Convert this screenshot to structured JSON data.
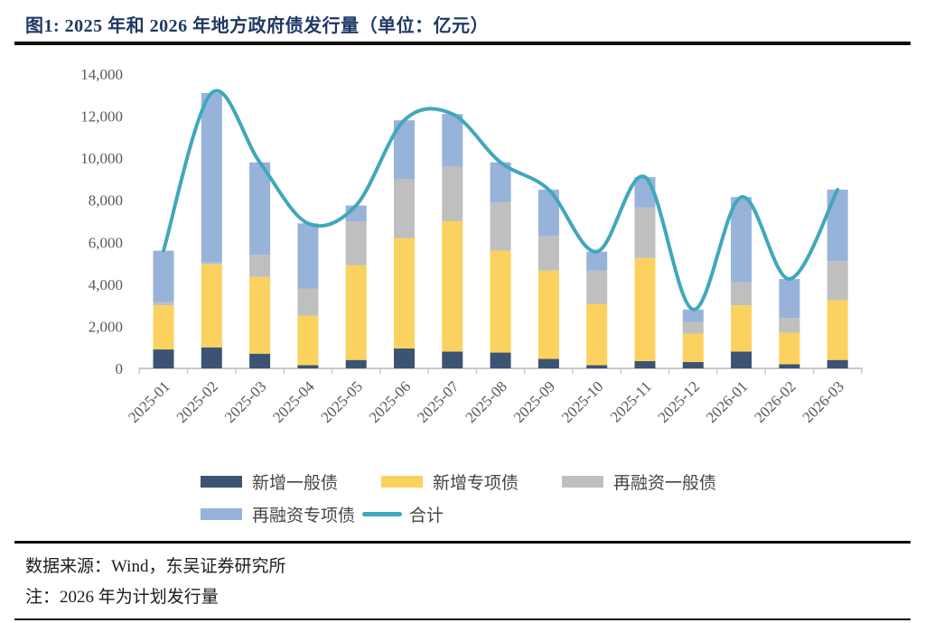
{
  "header": {
    "title": "图1:  2025 年和 2026 年地方政府债发行量（单位：亿元）"
  },
  "chart_data": {
    "type": "bar",
    "subtype": "stacked-bars-with-total-line",
    "title": "2025 年和 2026 年地方政府债发行量",
    "unit": "亿元",
    "xlabel": "",
    "ylabel": "",
    "ylim": [
      0,
      14000
    ],
    "ytick_labels": [
      "0",
      "2,000",
      "4,000",
      "6,000",
      "8,000",
      "10,000",
      "12,000",
      "14,000"
    ],
    "grid": false,
    "legend_position": "bottom",
    "categories": [
      "2025-01",
      "2025-02",
      "2025-03",
      "2025-04",
      "2025-05",
      "2025-06",
      "2025-07",
      "2025-08",
      "2025-09",
      "2025-10",
      "2025-11",
      "2025-12",
      "2026-01",
      "2026-02",
      "2026-03"
    ],
    "series": [
      {
        "name": "新增一般债",
        "color": "#3D5373",
        "values": [
          900,
          1000,
          700,
          150,
          400,
          950,
          800,
          750,
          450,
          150,
          350,
          300,
          800,
          200,
          400
        ]
      },
      {
        "name": "新增专项债",
        "color": "#FBD25F",
        "values": [
          2100,
          3950,
          3650,
          2350,
          4500,
          5250,
          6200,
          4850,
          4200,
          2900,
          4900,
          1350,
          2200,
          1500,
          2850
        ]
      },
      {
        "name": "再融资一般债",
        "color": "#BFBFBF",
        "values": [
          150,
          100,
          1050,
          1300,
          2100,
          2800,
          2600,
          2300,
          1650,
          1600,
          2400,
          550,
          1100,
          700,
          1850
        ]
      },
      {
        "name": "再融资专项债",
        "color": "#97B3DA",
        "values": [
          2450,
          8050,
          4400,
          3100,
          750,
          2800,
          2500,
          1900,
          2200,
          900,
          1450,
          600,
          4050,
          1850,
          3400
        ]
      }
    ],
    "line_series": {
      "name": "合计",
      "color": "#41A7BC",
      "values": [
        5600,
        13100,
        9800,
        6900,
        7750,
        11800,
        12100,
        9800,
        8500,
        5550,
        9100,
        2800,
        8150,
        4250,
        8500
      ]
    },
    "axis_color": "#C9C9C9",
    "tick_label_color": "#595959"
  },
  "footer": {
    "source": "数据来源：Wind，东吴证券研究所",
    "note": "注：2026 年为计划发行量"
  }
}
